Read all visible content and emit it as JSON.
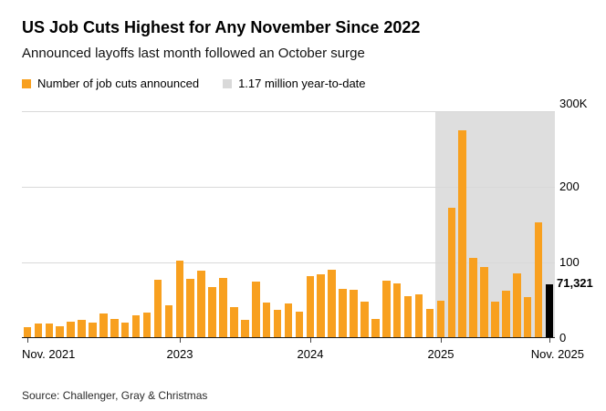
{
  "header": {
    "title": "US Job Cuts Highest for Any November Since 2022",
    "subtitle": "Announced layoffs last month followed an October surge"
  },
  "legend": [
    {
      "label": "Number of job cuts announced",
      "color": "#F8A01F"
    },
    {
      "label": "1.17 million year-to-date",
      "color": "#D9D9D9"
    }
  ],
  "chart_data": {
    "type": "bar",
    "title": "US Job Cuts Highest for Any November Since 2022",
    "subtitle": "Announced layoffs last month followed an October surge",
    "categories": [
      "Nov 2021",
      "Dec 2021",
      "Jan 2022",
      "Feb 2022",
      "Mar 2022",
      "Apr 2022",
      "May 2022",
      "Jun 2022",
      "Jul 2022",
      "Aug 2022",
      "Sep 2022",
      "Oct 2022",
      "Nov 2022",
      "Dec 2022",
      "Jan 2023",
      "Feb 2023",
      "Mar 2023",
      "Apr 2023",
      "May 2023",
      "Jun 2023",
      "Jul 2023",
      "Aug 2023",
      "Sep 2023",
      "Oct 2023",
      "Nov 2023",
      "Dec 2023",
      "Jan 2024",
      "Feb 2024",
      "Mar 2024",
      "Apr 2024",
      "May 2024",
      "Jun 2024",
      "Jul 2024",
      "Aug 2024",
      "Sep 2024",
      "Oct 2024",
      "Nov 2024",
      "Dec 2024",
      "Jan 2025",
      "Feb 2025",
      "Mar 2025",
      "Apr 2025",
      "May 2025",
      "Jun 2025",
      "Jul 2025",
      "Aug 2025",
      "Sep 2025",
      "Oct 2025",
      "Nov 2025"
    ],
    "values": [
      14875,
      19052,
      19064,
      15245,
      21387,
      24286,
      20712,
      32517,
      25810,
      20485,
      29989,
      33843,
      76835,
      43651,
      102943,
      77770,
      89703,
      66995,
      80089,
      40709,
      23697,
      75151,
      47457,
      36836,
      45510,
      34817,
      82307,
      84638,
      90309,
      64789,
      63816,
      48786,
      25885,
      75891,
      72821,
      55597,
      57727,
      38792,
      49795,
      172017,
      275240,
      105441,
      93816,
      47999,
      62075,
      85979,
      54064,
      153074,
      71321
    ],
    "ylim": [
      0,
      300000
    ],
    "yticks": [
      {
        "value": 0,
        "label": "0"
      },
      {
        "value": 100000,
        "label": "100"
      },
      {
        "value": 200000,
        "label": "200"
      },
      {
        "value": 300000,
        "label": "300K"
      }
    ],
    "xticks": [
      {
        "index": 0,
        "label": "Nov. 2021"
      },
      {
        "index": 14,
        "label": "2023"
      },
      {
        "index": 26,
        "label": "2024"
      },
      {
        "index": 38,
        "label": "2025"
      },
      {
        "index": 48,
        "label": "Nov. 2025"
      }
    ],
    "bar_color": "#F8A01F",
    "highlight": {
      "index": 48,
      "color": "#000000",
      "label": "71,321"
    },
    "shade": {
      "start_index": 38,
      "end_index": 48,
      "color": "#DEDEDE",
      "meaning": "1.17 million year-to-date"
    },
    "grid": "horizontal",
    "legend_position": "top"
  },
  "footer": {
    "source": "Source: Challenger, Gray & Christmas"
  }
}
